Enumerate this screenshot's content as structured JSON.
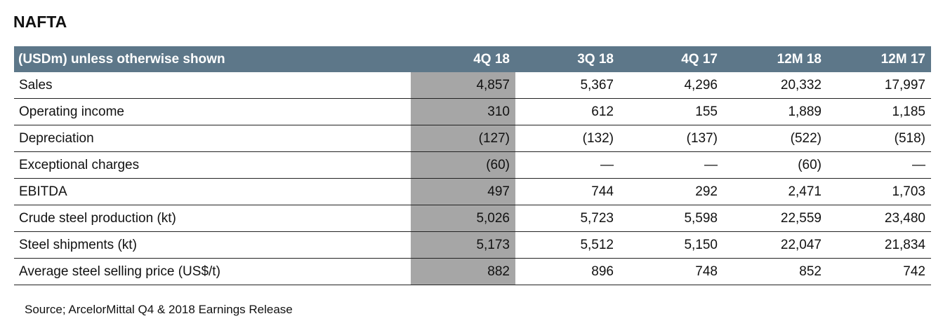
{
  "title": "NAFTA",
  "table": {
    "header": [
      "(USDm) unless otherwise shown",
      "4Q 18",
      "3Q 18",
      "4Q 17",
      "12M 18",
      "12M 17"
    ],
    "rows": [
      [
        "Sales",
        "4,857",
        "5,367",
        "4,296",
        "20,332",
        "17,997"
      ],
      [
        "Operating income",
        "310",
        "612",
        "155",
        "1,889",
        "1,185"
      ],
      [
        "Depreciation",
        "(127)",
        "(132)",
        "(137)",
        "(522)",
        "(518)"
      ],
      [
        "Exceptional charges",
        "(60)",
        "—",
        "—",
        "(60)",
        "—"
      ],
      [
        "EBITDA",
        "497",
        "744",
        "292",
        "2,471",
        "1,703"
      ],
      [
        "Crude steel production (kt)",
        "5,026",
        "5,723",
        "5,598",
        "22,559",
        "23,480"
      ],
      [
        "Steel shipments (kt)",
        "5,173",
        "5,512",
        "5,150",
        "22,047",
        "21,834"
      ],
      [
        "Average steel selling price (US$/t)",
        "882",
        "896",
        "748",
        "852",
        "742"
      ]
    ]
  },
  "source": "Source; ArcelorMittal Q4 & 2018 Earnings Release"
}
